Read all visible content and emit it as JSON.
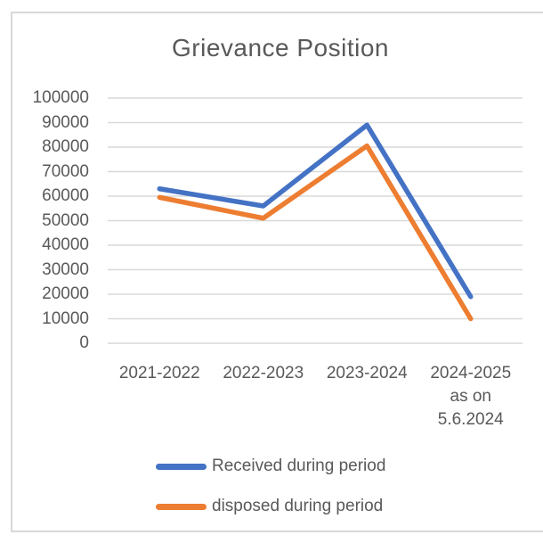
{
  "frame": {
    "background": "#ffffff",
    "border_color": "#d9d9d9"
  },
  "chart_data": {
    "type": "line",
    "title": "Grievance Position",
    "categories": [
      "2021-2022",
      "2022-2023",
      "2023-2024",
      "2024-2025 as on 5.6.2024"
    ],
    "category_display_lines": [
      [
        "2021-2022"
      ],
      [
        "2022-2023"
      ],
      [
        "2023-2024"
      ],
      [
        "2024-2025",
        "as on",
        "5.6.2024"
      ]
    ],
    "series": [
      {
        "name": "Received during period",
        "color": "#4472C4",
        "values": [
          63000,
          56000,
          89000,
          19000
        ]
      },
      {
        "name": "disposed during period",
        "color": "#ED7D31",
        "values": [
          59500,
          51000,
          80500,
          10000
        ]
      }
    ],
    "xlabel": "",
    "ylabel": "",
    "ylim": [
      0,
      100000
    ],
    "ytick_step": 10000,
    "ytick_labels": [
      "0",
      "10000",
      "20000",
      "30000",
      "40000",
      "50000",
      "60000",
      "70000",
      "80000",
      "90000",
      "100000"
    ],
    "grid": true,
    "gridline_color": "#d9d9d9",
    "text_color": "#595959",
    "legend_position": "bottom"
  }
}
